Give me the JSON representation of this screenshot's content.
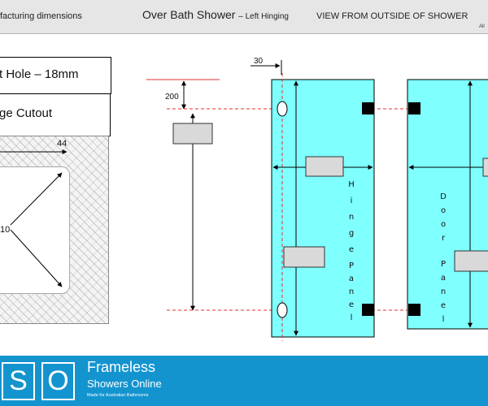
{
  "header": {
    "left_text": "facturing dimensions",
    "title": "Over Bath Shower",
    "subtitle": "– Left Hinging",
    "view_label": "VIEW FROM OUTSIDE OF SHOWER",
    "corner_text": "All"
  },
  "detail": {
    "hole_label": "t Hole – 18mm",
    "cutout_label": "ge Cutout",
    "width_dim": "44",
    "radius_dim": "10"
  },
  "diagram": {
    "offset_top": "30",
    "offset_hinge": "200",
    "hinge_panel_letters": [
      "H",
      "i",
      "n",
      "g",
      "e",
      "P",
      "a",
      "n",
      "e",
      "l"
    ],
    "door_panel_letters": [
      "D",
      "o",
      "o",
      "r",
      "P",
      "a",
      "n",
      "e",
      "l"
    ],
    "panel_color": "#80ffff",
    "guide_color": "#e03030"
  },
  "footer": {
    "logo_left": "S",
    "logo_right": "O",
    "brand_line1": "Frameless",
    "brand_line2": "Showers Online",
    "tagline": "Made for Australian Bathrooms",
    "background": "#1394cf"
  }
}
